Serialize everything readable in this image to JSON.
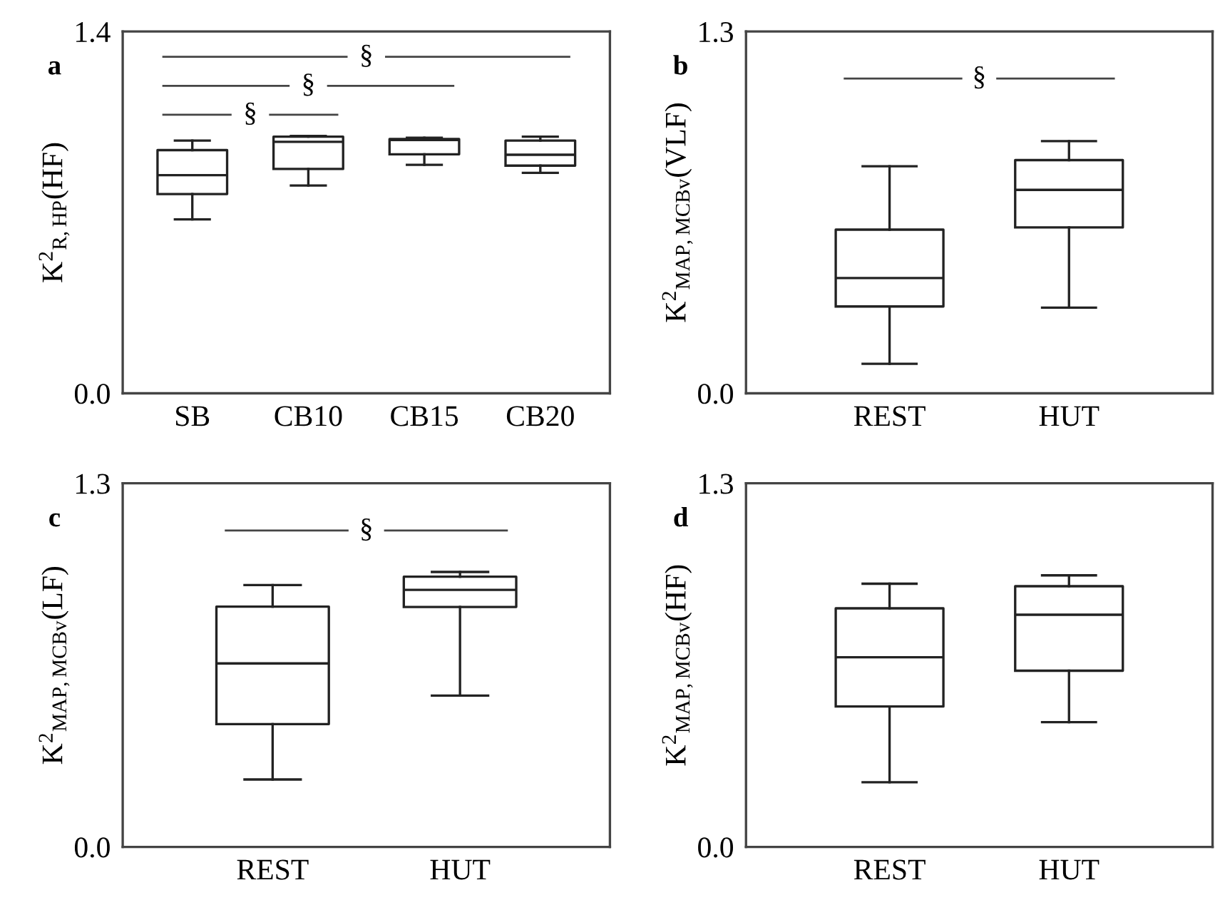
{
  "chart_data": [
    {
      "type": "box",
      "title": "a",
      "ylabel": "K$^{2}$$_{R,HP}$(HF)",
      "categories": [
        "SB",
        "CB10",
        "CB15",
        "CB20"
      ],
      "ylim": [
        0,
        1.4
      ],
      "yticks": [
        {
          "value": 0,
          "label": "0.0"
        },
        {
          "value": 1.4,
          "label": "1.4"
        }
      ],
      "boxes": [
        {
          "low": 0.673,
          "q1": 0.771,
          "median": 0.844,
          "q3": 0.941,
          "high": 0.978
        },
        {
          "low": 0.804,
          "q1": 0.868,
          "median": 0.973,
          "q3": 0.993,
          "high": 0.996
        },
        {
          "low": 0.884,
          "q1": 0.925,
          "median": 0.98,
          "q3": 0.984,
          "high": 0.989
        },
        {
          "low": 0.853,
          "q1": 0.881,
          "median": 0.923,
          "q3": 0.978,
          "high": 0.993
        }
      ],
      "annotations": [
        "§",
        "§",
        "§"
      ],
      "grid": false,
      "legend": false
    },
    {
      "type": "box",
      "title": "b",
      "ylabel": "K$^{2}$$_{MAP,MCBv}$(VLF)",
      "categories": [
        "REST",
        "HUT"
      ],
      "ylim": [
        0,
        1.3
      ],
      "yticks": [
        {
          "value": 0,
          "label": "0.0"
        },
        {
          "value": 1.3,
          "label": "1.3"
        }
      ],
      "boxes": [
        {
          "low": 0.106,
          "q1": 0.312,
          "median": 0.414,
          "q3": 0.588,
          "high": 0.816
        },
        {
          "low": 0.308,
          "q1": 0.596,
          "median": 0.731,
          "q3": 0.838,
          "high": 0.906
        }
      ],
      "annotations": [
        "§"
      ],
      "grid": false,
      "legend": false
    },
    {
      "type": "box",
      "title": "c",
      "ylabel": "K$^{2}$$_{MAP,MCBv}$(LF)",
      "categories": [
        "REST",
        "HUT"
      ],
      "ylim": [
        0,
        1.3
      ],
      "yticks": [
        {
          "value": 0,
          "label": "0.0"
        },
        {
          "value": 1.3,
          "label": "1.3"
        }
      ],
      "boxes": [
        {
          "low": 0.241,
          "q1": 0.439,
          "median": 0.656,
          "q3": 0.859,
          "high": 0.936
        },
        {
          "low": 0.541,
          "q1": 0.858,
          "median": 0.919,
          "q3": 0.966,
          "high": 0.983
        }
      ],
      "annotations": [
        "§"
      ],
      "grid": false,
      "legend": false
    },
    {
      "type": "box",
      "title": "d",
      "ylabel": "K$^{2}$$_{MAP,MCBv}$(HF)",
      "categories": [
        "REST",
        "HUT"
      ],
      "ylim": [
        0,
        1.3
      ],
      "yticks": [
        {
          "value": 0,
          "label": "0.0"
        },
        {
          "value": 1.3,
          "label": "1.3"
        }
      ],
      "boxes": [
        {
          "low": 0.231,
          "q1": 0.502,
          "median": 0.678,
          "q3": 0.853,
          "high": 0.941
        },
        {
          "low": 0.446,
          "q1": 0.63,
          "median": 0.83,
          "q3": 0.932,
          "high": 0.971
        }
      ],
      "grid": false,
      "legend": false
    }
  ]
}
